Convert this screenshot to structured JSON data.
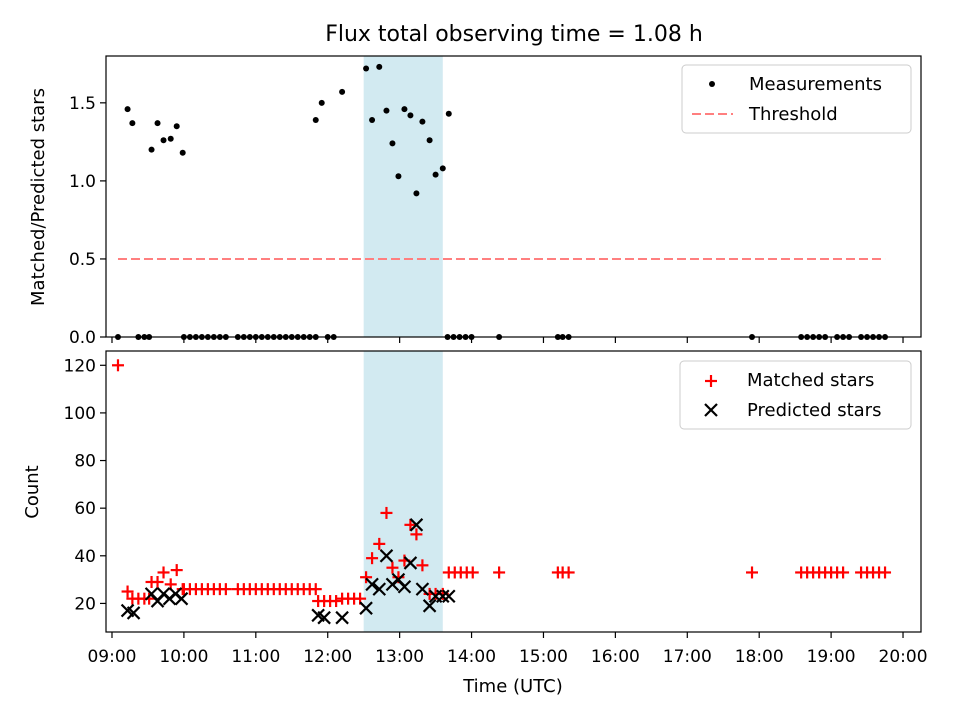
{
  "chart_data": [
    {
      "type": "scatter",
      "title": "Flux total observing time = 1.08 h",
      "xlabel": "",
      "ylabel": "Matched/Predicted stars",
      "ylim": [
        0,
        1.8
      ],
      "yticks": [
        0.0,
        0.5,
        1.0,
        1.5
      ],
      "ytick_labels": [
        "0.0",
        "0.5",
        "1.0",
        "1.5"
      ],
      "highlight_span": {
        "start": "12:30",
        "end": "13:36",
        "color": "#add8e6"
      },
      "legend_position": "top-right",
      "legend": [
        "Measurements",
        "Threshold"
      ],
      "series": [
        {
          "name": "Measurements",
          "marker": "dot",
          "color": "#000000",
          "points": [
            [
              "09:05",
              0
            ],
            [
              "09:13",
              1.46
            ],
            [
              "09:17",
              1.37
            ],
            [
              "09:22",
              0
            ],
            [
              "09:27",
              0
            ],
            [
              "09:31",
              0
            ],
            [
              "09:33",
              1.2
            ],
            [
              "09:38",
              1.37
            ],
            [
              "09:43",
              1.26
            ],
            [
              "09:49",
              1.27
            ],
            [
              "09:54",
              1.35
            ],
            [
              "09:59",
              1.18
            ],
            [
              "10:00",
              0
            ],
            [
              "10:05",
              0
            ],
            [
              "10:10",
              0
            ],
            [
              "10:15",
              0
            ],
            [
              "10:20",
              0
            ],
            [
              "10:25",
              0
            ],
            [
              "10:30",
              0
            ],
            [
              "10:35",
              0
            ],
            [
              "10:45",
              0
            ],
            [
              "10:50",
              0
            ],
            [
              "10:55",
              0
            ],
            [
              "11:00",
              0
            ],
            [
              "11:05",
              0
            ],
            [
              "11:10",
              0
            ],
            [
              "11:15",
              0
            ],
            [
              "11:20",
              0
            ],
            [
              "11:25",
              0
            ],
            [
              "11:30",
              0
            ],
            [
              "11:35",
              0
            ],
            [
              "11:40",
              0
            ],
            [
              "11:45",
              0
            ],
            [
              "11:50",
              0
            ],
            [
              "11:50",
              1.39
            ],
            [
              "11:55",
              1.5
            ],
            [
              "12:00",
              0
            ],
            [
              "12:05",
              0
            ],
            [
              "12:12",
              1.57
            ],
            [
              "12:32",
              1.72
            ],
            [
              "12:37",
              1.39
            ],
            [
              "12:43",
              1.73
            ],
            [
              "12:49",
              1.45
            ],
            [
              "12:54",
              1.24
            ],
            [
              "12:59",
              1.03
            ],
            [
              "13:04",
              1.46
            ],
            [
              "13:09",
              1.42
            ],
            [
              "13:14",
              0.92
            ],
            [
              "13:19",
              1.38
            ],
            [
              "13:25",
              1.26
            ],
            [
              "13:30",
              1.04
            ],
            [
              "13:36",
              1.08
            ],
            [
              "13:41",
              1.43
            ],
            [
              "13:40",
              0
            ],
            [
              "13:45",
              0
            ],
            [
              "13:50",
              0
            ],
            [
              "13:55",
              0
            ],
            [
              "14:00",
              0
            ],
            [
              "14:23",
              0
            ],
            [
              "15:12",
              0
            ],
            [
              "15:16",
              0
            ],
            [
              "15:21",
              0
            ],
            [
              "17:54",
              0
            ],
            [
              "18:35",
              0
            ],
            [
              "18:40",
              0
            ],
            [
              "18:45",
              0
            ],
            [
              "18:50",
              0
            ],
            [
              "18:55",
              0
            ],
            [
              "19:05",
              0
            ],
            [
              "19:10",
              0
            ],
            [
              "19:15",
              0
            ],
            [
              "19:25",
              0
            ],
            [
              "19:30",
              0
            ],
            [
              "19:35",
              0
            ],
            [
              "19:40",
              0
            ],
            [
              "19:45",
              0
            ]
          ]
        },
        {
          "name": "Threshold",
          "line": "dashed",
          "color": "#ff7f7f",
          "points": [
            [
              "09:05",
              0.5
            ],
            [
              "19:45",
              0.5
            ]
          ]
        }
      ]
    },
    {
      "type": "scatter",
      "title": "",
      "xlabel": "Time (UTC)",
      "ylabel": "Count",
      "ylim": [
        8,
        126
      ],
      "yticks": [
        20,
        40,
        60,
        80,
        100,
        120
      ],
      "ytick_labels": [
        "20",
        "40",
        "60",
        "80",
        "100",
        "120"
      ],
      "xlim": [
        "08:55",
        "20:15"
      ],
      "xticks": [
        "09:00",
        "10:00",
        "11:00",
        "12:00",
        "13:00",
        "14:00",
        "15:00",
        "16:00",
        "17:00",
        "18:00",
        "19:00",
        "20:00"
      ],
      "highlight_span": {
        "start": "12:30",
        "end": "13:36",
        "color": "#add8e6"
      },
      "legend_position": "top-right",
      "legend": [
        "Matched stars",
        "Predicted stars"
      ],
      "series": [
        {
          "name": "Matched stars",
          "marker": "plus",
          "color": "#ff0000",
          "points": [
            [
              "09:05",
              120
            ],
            [
              "09:13",
              25
            ],
            [
              "09:17",
              22
            ],
            [
              "09:22",
              22
            ],
            [
              "09:27",
              22
            ],
            [
              "09:31",
              22
            ],
            [
              "09:33",
              29
            ],
            [
              "09:38",
              29
            ],
            [
              "09:43",
              33
            ],
            [
              "09:49",
              28
            ],
            [
              "09:54",
              34
            ],
            [
              "09:59",
              26
            ],
            [
              "10:00",
              26
            ],
            [
              "10:05",
              26
            ],
            [
              "10:10",
              26
            ],
            [
              "10:15",
              26
            ],
            [
              "10:20",
              26
            ],
            [
              "10:25",
              26
            ],
            [
              "10:30",
              26
            ],
            [
              "10:35",
              26
            ],
            [
              "10:45",
              26
            ],
            [
              "10:50",
              26
            ],
            [
              "10:55",
              26
            ],
            [
              "11:00",
              26
            ],
            [
              "11:05",
              26
            ],
            [
              "11:10",
              26
            ],
            [
              "11:15",
              26
            ],
            [
              "11:20",
              26
            ],
            [
              "11:25",
              26
            ],
            [
              "11:30",
              26
            ],
            [
              "11:35",
              26
            ],
            [
              "11:40",
              26
            ],
            [
              "11:45",
              26
            ],
            [
              "11:50",
              26
            ],
            [
              "11:52",
              21
            ],
            [
              "11:57",
              21
            ],
            [
              "12:02",
              21
            ],
            [
              "12:07",
              21
            ],
            [
              "12:12",
              22
            ],
            [
              "12:17",
              22
            ],
            [
              "12:22",
              22
            ],
            [
              "12:27",
              22
            ],
            [
              "12:32",
              31
            ],
            [
              "12:37",
              39
            ],
            [
              "12:43",
              45
            ],
            [
              "12:49",
              58
            ],
            [
              "12:54",
              35
            ],
            [
              "12:59",
              31
            ],
            [
              "13:04",
              38
            ],
            [
              "13:09",
              53
            ],
            [
              "13:14",
              49
            ],
            [
              "13:19",
              36
            ],
            [
              "13:25",
              24
            ],
            [
              "13:30",
              24
            ],
            [
              "13:36",
              24
            ],
            [
              "13:41",
              33
            ],
            [
              "13:46",
              33
            ],
            [
              "13:51",
              33
            ],
            [
              "13:56",
              33
            ],
            [
              "14:01",
              33
            ],
            [
              "14:23",
              33
            ],
            [
              "15:12",
              33
            ],
            [
              "15:16",
              33
            ],
            [
              "15:21",
              33
            ],
            [
              "17:54",
              33
            ],
            [
              "18:35",
              33
            ],
            [
              "18:40",
              33
            ],
            [
              "18:45",
              33
            ],
            [
              "18:50",
              33
            ],
            [
              "18:55",
              33
            ],
            [
              "19:00",
              33
            ],
            [
              "19:05",
              33
            ],
            [
              "19:10",
              33
            ],
            [
              "19:25",
              33
            ],
            [
              "19:30",
              33
            ],
            [
              "19:35",
              33
            ],
            [
              "19:40",
              33
            ],
            [
              "19:45",
              33
            ]
          ]
        },
        {
          "name": "Predicted stars",
          "marker": "x",
          "color": "#000000",
          "points": [
            [
              "09:13",
              17
            ],
            [
              "09:18",
              16
            ],
            [
              "09:33",
              24
            ],
            [
              "09:38",
              21
            ],
            [
              "09:43",
              24
            ],
            [
              "09:48",
              22
            ],
            [
              "09:53",
              24
            ],
            [
              "09:58",
              22
            ],
            [
              "11:52",
              15
            ],
            [
              "11:57",
              14
            ],
            [
              "12:12",
              14
            ],
            [
              "12:32",
              18
            ],
            [
              "12:37",
              28
            ],
            [
              "12:43",
              26
            ],
            [
              "12:49",
              40
            ],
            [
              "12:54",
              28
            ],
            [
              "12:59",
              30
            ],
            [
              "13:04",
              27
            ],
            [
              "13:09",
              37
            ],
            [
              "13:14",
              53
            ],
            [
              "13:19",
              26
            ],
            [
              "13:25",
              19
            ],
            [
              "13:30",
              23
            ],
            [
              "13:36",
              23
            ],
            [
              "13:41",
              23
            ]
          ]
        }
      ]
    }
  ]
}
